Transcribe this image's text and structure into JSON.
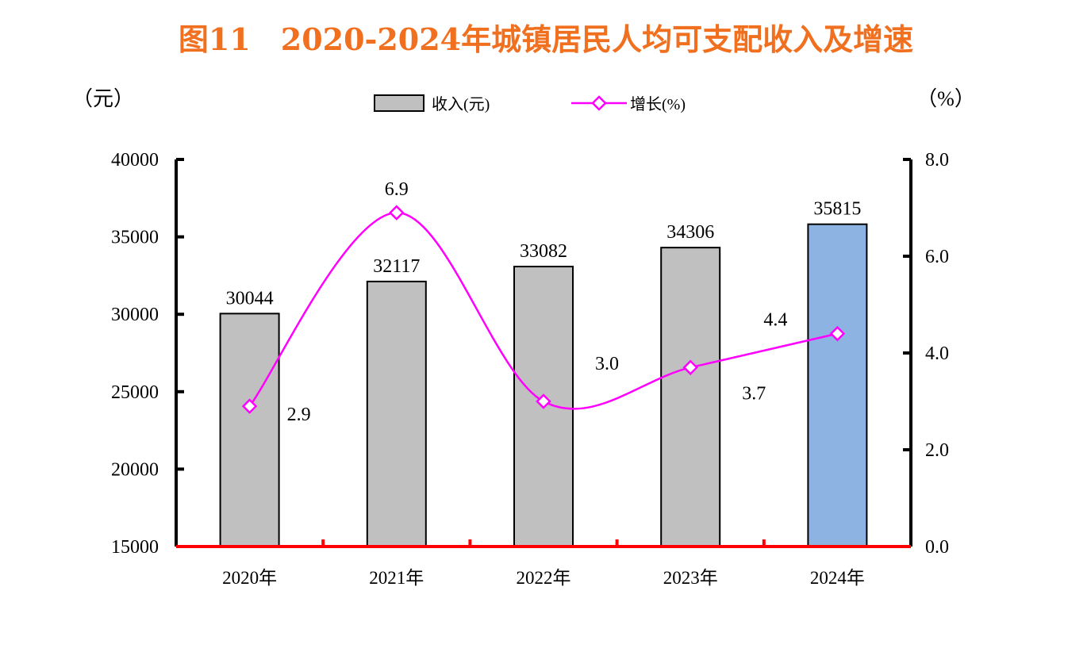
{
  "chart_data": {
    "type": "bar",
    "title": "图11　2020-2024年城镇居民人均可支配收入及增速",
    "left_axis_unit": "（元）",
    "right_axis_unit": "（%）",
    "categories": [
      "2020年",
      "2021年",
      "2022年",
      "2023年",
      "2024年"
    ],
    "series": [
      {
        "name": "收入(元)",
        "kind": "bar",
        "axis": "left",
        "values": [
          30044,
          32117,
          33082,
          34306,
          35815
        ],
        "colors": [
          "#c0c0c0",
          "#c0c0c0",
          "#c0c0c0",
          "#c0c0c0",
          "#8db3e2"
        ]
      },
      {
        "name": "增长(%)",
        "kind": "line",
        "axis": "right",
        "smooth": true,
        "values": [
          2.9,
          6.9,
          3.0,
          3.7,
          4.4
        ],
        "labels": [
          "2.9",
          "6.9",
          "3.0",
          "3.7",
          "4.4"
        ],
        "color": "#ff00ff"
      }
    ],
    "y_left": {
      "min": 15000,
      "max": 40000,
      "ticks": [
        "15000",
        "20000",
        "25000",
        "30000",
        "35000",
        "40000"
      ]
    },
    "y_right": {
      "min": 0,
      "max": 8,
      "ticks": [
        "0.0",
        "2.0",
        "4.0",
        "6.0",
        "8.0"
      ]
    },
    "legend_position": "top",
    "grid": false,
    "axis_color": "#000000",
    "baseline_color": "#ff0000"
  }
}
